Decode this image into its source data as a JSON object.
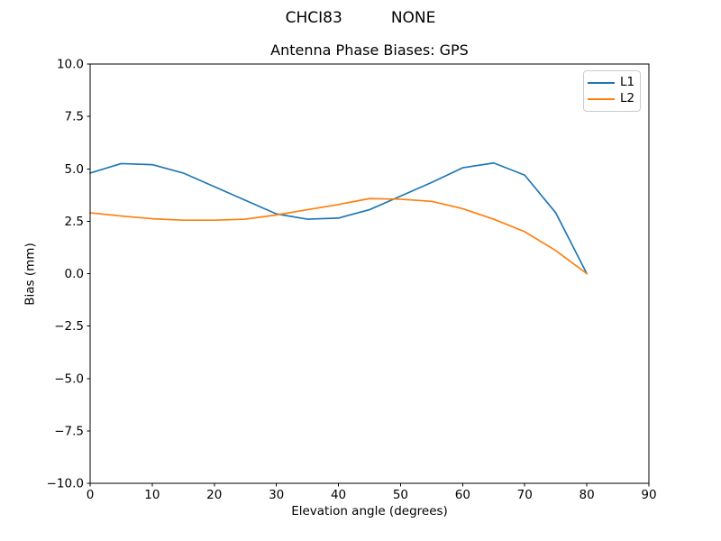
{
  "chart_data": {
    "type": "line",
    "suptitle": "CHCI83          NONE",
    "title": "Antenna Phase Biases: GPS",
    "xlabel": "Elevation angle (degrees)",
    "ylabel": "Bias (mm)",
    "xlim": [
      0,
      90
    ],
    "ylim": [
      -10,
      10
    ],
    "xticks": [
      0,
      10,
      20,
      30,
      40,
      50,
      60,
      70,
      80,
      90
    ],
    "xticklabels": [
      "0",
      "10",
      "20",
      "30",
      "40",
      "50",
      "60",
      "70",
      "80",
      "90"
    ],
    "yticks": [
      -10,
      -7.5,
      -5,
      -2.5,
      0,
      2.5,
      5,
      7.5,
      10
    ],
    "yticklabels": [
      "−10.0",
      "−7.5",
      "−5.0",
      "−2.5",
      "0.0",
      "2.5",
      "5.0",
      "7.5",
      "10.0"
    ],
    "grid": false,
    "legend_position": "upper right",
    "axis_color": "#000000",
    "text_color": "#000000",
    "background_color": "#ffffff",
    "x": [
      0,
      5,
      10,
      15,
      20,
      25,
      30,
      35,
      40,
      45,
      50,
      55,
      60,
      65,
      70,
      75,
      80
    ],
    "series": [
      {
        "name": "L1",
        "color": "#1f77b4",
        "values": [
          4.8,
          5.25,
          5.2,
          4.8,
          4.15,
          3.5,
          2.85,
          2.6,
          2.65,
          3.05,
          3.7,
          4.35,
          5.05,
          5.28,
          4.7,
          2.9,
          0.0
        ]
      },
      {
        "name": "L2",
        "color": "#ff7f0e",
        "values": [
          2.9,
          2.75,
          2.62,
          2.55,
          2.55,
          2.6,
          2.8,
          3.05,
          3.3,
          3.58,
          3.55,
          3.45,
          3.1,
          2.6,
          2.0,
          1.1,
          0.0
        ]
      }
    ]
  }
}
